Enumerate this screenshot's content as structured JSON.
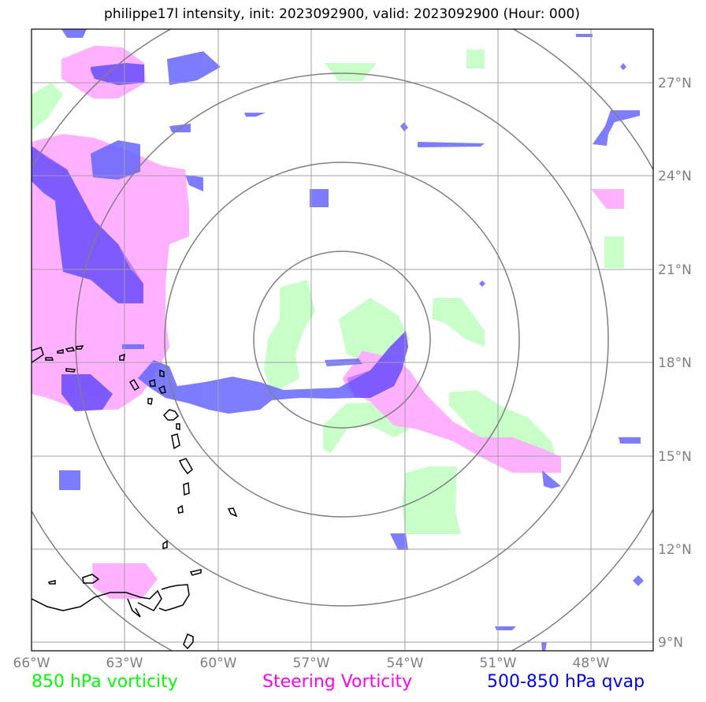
{
  "title": "philippe17l intensity, init: 2023092900, valid: 2023092900 (Hour: 000)",
  "longitude_ticks": [
    "66°W",
    "63°W",
    "60°W",
    "57°W",
    "54°W",
    "51°W",
    "48°W"
  ],
  "latitude_ticks": [
    "27°N",
    "24°N",
    "21°N",
    "18°N",
    "15°N",
    "12°N",
    "9°N"
  ],
  "legend": [
    {
      "label": "850 hPa vorticity",
      "color": "#00ff00"
    },
    {
      "label": "Steering Vorticity",
      "color": "#ff00ff"
    },
    {
      "label": "500-850 hPa qvap",
      "color": "#0000ff"
    }
  ],
  "map": {
    "extent": {
      "lon_min": -66,
      "lon_max": -46,
      "lat_min": 8.6,
      "lat_max": 28.8
    },
    "storm_center": {
      "lon": -55.2,
      "lat": 18.8
    },
    "range_rings": 4,
    "colors": {
      "vorticity_850": "#c8ffc8",
      "steering_vorticity": "#ffaaff",
      "qvap": "#6666ff",
      "gridline": "#a0a0a0",
      "ring": "#808080",
      "coastline": "#000000"
    }
  }
}
